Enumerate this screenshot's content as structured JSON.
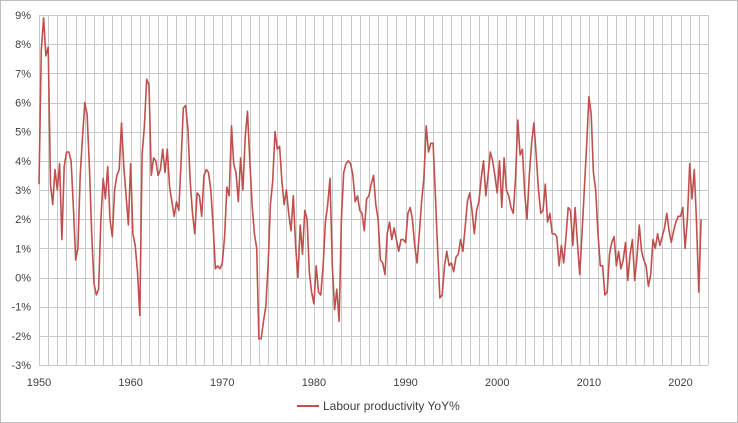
{
  "chart_data": {
    "type": "line",
    "title": "",
    "xlabel": "",
    "ylabel": "",
    "xlim": [
      1950,
      2023
    ],
    "ylim": [
      -3,
      9
    ],
    "x_ticks": [
      1950,
      1960,
      1970,
      1980,
      1990,
      2000,
      2010,
      2020
    ],
    "y_ticks": [
      -3,
      -2,
      -1,
      0,
      1,
      2,
      3,
      4,
      5,
      6,
      7,
      8,
      9
    ],
    "y_tick_suffix": "%",
    "grid": true,
    "legend": "bottom",
    "series": [
      {
        "name": "Labour productivity YoY%",
        "color": "#c0504d",
        "points": [
          [
            1950.0,
            3.2
          ],
          [
            1950.25,
            7.8
          ],
          [
            1950.5,
            8.9
          ],
          [
            1950.75,
            7.6
          ],
          [
            1951.0,
            7.9
          ],
          [
            1951.25,
            3.2
          ],
          [
            1951.5,
            2.5
          ],
          [
            1951.75,
            3.7
          ],
          [
            1952.0,
            3.0
          ],
          [
            1952.25,
            3.9
          ],
          [
            1952.5,
            1.3
          ],
          [
            1952.75,
            3.8
          ],
          [
            1953.0,
            4.3
          ],
          [
            1953.25,
            4.3
          ],
          [
            1953.5,
            4.0
          ],
          [
            1953.75,
            2.4
          ],
          [
            1954.0,
            0.6
          ],
          [
            1954.25,
            1.0
          ],
          [
            1954.5,
            3.5
          ],
          [
            1954.75,
            4.8
          ],
          [
            1955.0,
            6.0
          ],
          [
            1955.25,
            5.6
          ],
          [
            1955.5,
            3.8
          ],
          [
            1955.75,
            1.5
          ],
          [
            1956.0,
            -0.2
          ],
          [
            1956.25,
            -0.6
          ],
          [
            1956.5,
            -0.4
          ],
          [
            1956.75,
            2.0
          ],
          [
            1957.0,
            3.4
          ],
          [
            1957.25,
            2.7
          ],
          [
            1957.5,
            3.8
          ],
          [
            1957.75,
            2.0
          ],
          [
            1958.0,
            1.4
          ],
          [
            1958.25,
            3.0
          ],
          [
            1958.5,
            3.5
          ],
          [
            1958.75,
            3.7
          ],
          [
            1959.0,
            5.3
          ],
          [
            1959.25,
            3.8
          ],
          [
            1959.5,
            2.8
          ],
          [
            1959.75,
            1.8
          ],
          [
            1960.0,
            3.9
          ],
          [
            1960.25,
            1.5
          ],
          [
            1960.5,
            1.1
          ],
          [
            1960.75,
            0.2
          ],
          [
            1961.0,
            -1.3
          ],
          [
            1961.25,
            4.2
          ],
          [
            1961.5,
            5.2
          ],
          [
            1961.75,
            6.8
          ],
          [
            1962.0,
            6.6
          ],
          [
            1962.25,
            3.5
          ],
          [
            1962.5,
            4.1
          ],
          [
            1962.75,
            4.0
          ],
          [
            1963.0,
            3.5
          ],
          [
            1963.25,
            3.7
          ],
          [
            1963.5,
            4.4
          ],
          [
            1963.75,
            3.6
          ],
          [
            1964.0,
            4.4
          ],
          [
            1964.25,
            3.1
          ],
          [
            1964.5,
            2.6
          ],
          [
            1964.75,
            2.1
          ],
          [
            1965.0,
            2.6
          ],
          [
            1965.25,
            2.3
          ],
          [
            1965.5,
            3.9
          ],
          [
            1965.75,
            5.8
          ],
          [
            1966.0,
            5.9
          ],
          [
            1966.25,
            5.1
          ],
          [
            1966.5,
            3.3
          ],
          [
            1966.75,
            2.2
          ],
          [
            1967.0,
            1.5
          ],
          [
            1967.25,
            2.9
          ],
          [
            1967.5,
            2.8
          ],
          [
            1967.75,
            2.1
          ],
          [
            1968.0,
            3.5
          ],
          [
            1968.25,
            3.7
          ],
          [
            1968.5,
            3.6
          ],
          [
            1968.75,
            3.0
          ],
          [
            1969.0,
            1.8
          ],
          [
            1969.25,
            0.3
          ],
          [
            1969.5,
            0.4
          ],
          [
            1969.75,
            0.3
          ],
          [
            1970.0,
            0.5
          ],
          [
            1970.25,
            1.4
          ],
          [
            1970.5,
            3.1
          ],
          [
            1970.75,
            2.8
          ],
          [
            1971.0,
            5.2
          ],
          [
            1971.25,
            3.9
          ],
          [
            1971.5,
            3.6
          ],
          [
            1971.75,
            2.6
          ],
          [
            1972.0,
            4.1
          ],
          [
            1972.25,
            3.0
          ],
          [
            1972.5,
            4.8
          ],
          [
            1972.75,
            5.7
          ],
          [
            1973.0,
            4.0
          ],
          [
            1973.25,
            2.5
          ],
          [
            1973.5,
            1.5
          ],
          [
            1973.75,
            1.0
          ],
          [
            1974.0,
            -2.1
          ],
          [
            1974.25,
            -2.1
          ],
          [
            1974.5,
            -1.5
          ],
          [
            1974.75,
            -1.0
          ],
          [
            1975.0,
            0.4
          ],
          [
            1975.25,
            2.5
          ],
          [
            1975.5,
            3.3
          ],
          [
            1975.75,
            5.0
          ],
          [
            1976.0,
            4.4
          ],
          [
            1976.25,
            4.5
          ],
          [
            1976.5,
            3.3
          ],
          [
            1976.75,
            2.5
          ],
          [
            1977.0,
            3.0
          ],
          [
            1977.25,
            2.2
          ],
          [
            1977.5,
            1.6
          ],
          [
            1977.75,
            2.8
          ],
          [
            1978.0,
            1.1
          ],
          [
            1978.25,
            0.0
          ],
          [
            1978.5,
            1.8
          ],
          [
            1978.75,
            0.8
          ],
          [
            1979.0,
            2.3
          ],
          [
            1979.25,
            2.0
          ],
          [
            1979.5,
            0.2
          ],
          [
            1979.75,
            -0.5
          ],
          [
            1980.0,
            -0.9
          ],
          [
            1980.25,
            0.4
          ],
          [
            1980.5,
            -0.5
          ],
          [
            1980.75,
            -0.6
          ],
          [
            1981.0,
            0.4
          ],
          [
            1981.25,
            1.9
          ],
          [
            1981.5,
            2.5
          ],
          [
            1981.75,
            3.4
          ],
          [
            1982.0,
            0.4
          ],
          [
            1982.25,
            -1.1
          ],
          [
            1982.5,
            -0.4
          ],
          [
            1982.75,
            -1.5
          ],
          [
            1983.0,
            2.0
          ],
          [
            1983.25,
            3.6
          ],
          [
            1983.5,
            3.9
          ],
          [
            1983.75,
            4.0
          ],
          [
            1984.0,
            3.9
          ],
          [
            1984.25,
            3.5
          ],
          [
            1984.5,
            2.6
          ],
          [
            1984.75,
            2.8
          ],
          [
            1985.0,
            2.3
          ],
          [
            1985.25,
            2.2
          ],
          [
            1985.5,
            1.6
          ],
          [
            1985.75,
            2.7
          ],
          [
            1986.0,
            2.8
          ],
          [
            1986.25,
            3.2
          ],
          [
            1986.5,
            3.5
          ],
          [
            1986.75,
            2.5
          ],
          [
            1987.0,
            2.0
          ],
          [
            1987.25,
            0.6
          ],
          [
            1987.5,
            0.5
          ],
          [
            1987.75,
            0.1
          ],
          [
            1988.0,
            1.5
          ],
          [
            1988.25,
            1.9
          ],
          [
            1988.5,
            1.3
          ],
          [
            1988.75,
            1.7
          ],
          [
            1989.0,
            1.3
          ],
          [
            1989.25,
            0.9
          ],
          [
            1989.5,
            1.3
          ],
          [
            1989.75,
            1.3
          ],
          [
            1990.0,
            1.2
          ],
          [
            1990.25,
            2.2
          ],
          [
            1990.5,
            2.4
          ],
          [
            1990.75,
            2.0
          ],
          [
            1991.0,
            1.1
          ],
          [
            1991.25,
            0.5
          ],
          [
            1991.5,
            1.5
          ],
          [
            1991.75,
            2.6
          ],
          [
            1992.0,
            3.4
          ],
          [
            1992.25,
            5.2
          ],
          [
            1992.5,
            4.3
          ],
          [
            1992.75,
            4.6
          ],
          [
            1993.0,
            4.6
          ],
          [
            1993.25,
            2.8
          ],
          [
            1993.5,
            0.9
          ],
          [
            1993.75,
            -0.7
          ],
          [
            1994.0,
            -0.6
          ],
          [
            1994.25,
            0.4
          ],
          [
            1994.5,
            0.9
          ],
          [
            1994.75,
            0.4
          ],
          [
            1995.0,
            0.5
          ],
          [
            1995.25,
            0.2
          ],
          [
            1995.5,
            0.7
          ],
          [
            1995.75,
            0.8
          ],
          [
            1996.0,
            1.3
          ],
          [
            1996.25,
            0.9
          ],
          [
            1996.5,
            1.7
          ],
          [
            1996.75,
            2.6
          ],
          [
            1997.0,
            2.9
          ],
          [
            1997.25,
            2.3
          ],
          [
            1997.5,
            1.5
          ],
          [
            1997.75,
            2.3
          ],
          [
            1998.0,
            2.6
          ],
          [
            1998.25,
            3.4
          ],
          [
            1998.5,
            4.0
          ],
          [
            1998.75,
            2.8
          ],
          [
            1999.0,
            3.5
          ],
          [
            1999.25,
            4.3
          ],
          [
            1999.5,
            4.0
          ],
          [
            1999.75,
            3.5
          ],
          [
            2000.0,
            2.9
          ],
          [
            2000.25,
            4.0
          ],
          [
            2000.5,
            2.4
          ],
          [
            2000.75,
            4.1
          ],
          [
            2001.0,
            3.0
          ],
          [
            2001.25,
            2.8
          ],
          [
            2001.5,
            2.4
          ],
          [
            2001.75,
            2.2
          ],
          [
            2002.0,
            3.4
          ],
          [
            2002.25,
            5.4
          ],
          [
            2002.5,
            4.2
          ],
          [
            2002.75,
            4.4
          ],
          [
            2003.0,
            2.9
          ],
          [
            2003.25,
            2.0
          ],
          [
            2003.5,
            3.5
          ],
          [
            2003.75,
            4.6
          ],
          [
            2004.0,
            5.3
          ],
          [
            2004.25,
            4.2
          ],
          [
            2004.5,
            3.0
          ],
          [
            2004.75,
            2.2
          ],
          [
            2005.0,
            2.3
          ],
          [
            2005.25,
            3.2
          ],
          [
            2005.5,
            1.9
          ],
          [
            2005.75,
            2.2
          ],
          [
            2006.0,
            1.5
          ],
          [
            2006.25,
            1.5
          ],
          [
            2006.5,
            1.4
          ],
          [
            2006.75,
            0.4
          ],
          [
            2007.0,
            1.1
          ],
          [
            2007.25,
            0.5
          ],
          [
            2007.5,
            1.4
          ],
          [
            2007.75,
            2.4
          ],
          [
            2008.0,
            2.3
          ],
          [
            2008.25,
            1.1
          ],
          [
            2008.5,
            2.4
          ],
          [
            2008.75,
            1.2
          ],
          [
            2009.0,
            0.1
          ],
          [
            2009.25,
            1.5
          ],
          [
            2009.5,
            3.0
          ],
          [
            2009.75,
            4.5
          ],
          [
            2010.0,
            6.2
          ],
          [
            2010.25,
            5.6
          ],
          [
            2010.5,
            3.6
          ],
          [
            2010.75,
            3.0
          ],
          [
            2011.0,
            1.5
          ],
          [
            2011.25,
            0.4
          ],
          [
            2011.5,
            0.4
          ],
          [
            2011.75,
            -0.6
          ],
          [
            2012.0,
            -0.5
          ],
          [
            2012.25,
            0.8
          ],
          [
            2012.5,
            1.2
          ],
          [
            2012.75,
            1.4
          ],
          [
            2013.0,
            0.4
          ],
          [
            2013.25,
            0.9
          ],
          [
            2013.5,
            0.3
          ],
          [
            2013.75,
            0.6
          ],
          [
            2014.0,
            1.2
          ],
          [
            2014.25,
            -0.1
          ],
          [
            2014.5,
            0.8
          ],
          [
            2014.75,
            1.3
          ],
          [
            2015.0,
            -0.1
          ],
          [
            2015.25,
            0.7
          ],
          [
            2015.5,
            1.8
          ],
          [
            2015.75,
            0.9
          ],
          [
            2016.0,
            0.6
          ],
          [
            2016.25,
            0.4
          ],
          [
            2016.5,
            -0.3
          ],
          [
            2016.75,
            0.1
          ],
          [
            2017.0,
            1.3
          ],
          [
            2017.25,
            1.0
          ],
          [
            2017.5,
            1.5
          ],
          [
            2017.75,
            1.1
          ],
          [
            2018.0,
            1.4
          ],
          [
            2018.25,
            1.7
          ],
          [
            2018.5,
            2.2
          ],
          [
            2018.75,
            1.6
          ],
          [
            2019.0,
            1.2
          ],
          [
            2019.25,
            1.6
          ],
          [
            2019.5,
            1.9
          ],
          [
            2019.75,
            2.1
          ],
          [
            2020.0,
            2.1
          ],
          [
            2020.25,
            2.4
          ],
          [
            2020.5,
            1.0
          ],
          [
            2020.75,
            2.0
          ],
          [
            2021.0,
            3.9
          ],
          [
            2021.25,
            2.7
          ],
          [
            2021.5,
            3.7
          ],
          [
            2021.75,
            1.9
          ],
          [
            2022.0,
            -0.5
          ],
          [
            2022.25,
            2.0
          ]
        ]
      }
    ]
  }
}
